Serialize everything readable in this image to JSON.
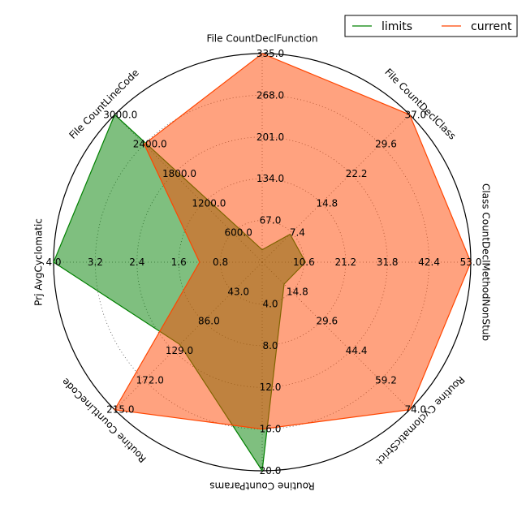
{
  "chart_data": {
    "type": "radar",
    "axes": [
      {
        "name": "File CountDeclFunction",
        "max": 335.0,
        "ticks": [
          "67.0",
          "134.0",
          "201.0",
          "268.0",
          "335.0"
        ]
      },
      {
        "name": "File CountDeclClass",
        "max": 37.0,
        "ticks": [
          "7.4",
          "14.8",
          "22.2",
          "29.6",
          "37.0"
        ]
      },
      {
        "name": "Class CountDeclMethodNonStub",
        "max": 53.0,
        "ticks": [
          "10.6",
          "21.2",
          "31.8",
          "42.4",
          "53.0"
        ]
      },
      {
        "name": "Routine CyclomaticStrict",
        "max": 74.0,
        "ticks": [
          "14.8",
          "29.6",
          "44.4",
          "59.2",
          "74.0"
        ]
      },
      {
        "name": "Routine CountParams",
        "max": 20.0,
        "ticks": [
          "4.0",
          "8.0",
          "12.0",
          "16.0",
          "20.0"
        ]
      },
      {
        "name": "Routine CountLineCode",
        "max": 215.0,
        "ticks": [
          "43.0",
          "86.0",
          "129.0",
          "172.0",
          "215.0"
        ]
      },
      {
        "name": "Prj AvgCyclomatic",
        "max": 4.0,
        "ticks": [
          "0.8",
          "1.6",
          "2.4",
          "3.2",
          "4.0"
        ]
      },
      {
        "name": "File CountLineCode",
        "max": 3000.0,
        "ticks": [
          "600.0",
          "1200.0",
          "1800.0",
          "2400.0",
          "3000.0"
        ]
      }
    ],
    "series": [
      {
        "name": "limits",
        "color": "#008000",
        "fill": "#008000",
        "fill_opacity": 0.5,
        "values": [
          20,
          7,
          11,
          11,
          20,
          120,
          4.0,
          3000
        ]
      },
      {
        "name": "current",
        "color": "#FF4500",
        "fill": "#FF4500",
        "fill_opacity": 0.5,
        "values": [
          335,
          37,
          53,
          74,
          16,
          215,
          1.2,
          2400
        ]
      }
    ],
    "legend": {
      "placement": "top-right",
      "columns": 2
    },
    "grid": true
  }
}
